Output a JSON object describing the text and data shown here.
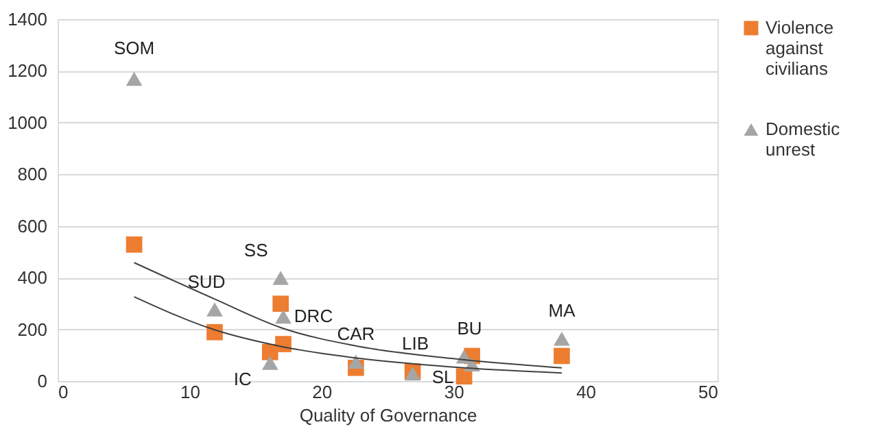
{
  "chart_data": {
    "type": "scatter",
    "xlabel": "Quality of Governance",
    "xlim": [
      0,
      50
    ],
    "xticks": [
      0,
      10,
      20,
      30,
      40,
      50
    ],
    "ylim": [
      0,
      1400
    ],
    "yticks": [
      0,
      200,
      400,
      600,
      800,
      1000,
      1200,
      1400
    ],
    "grid": "y",
    "legend": "right",
    "series": [
      {
        "name": "Violence against civilians",
        "color": "#ed7d31",
        "marker": "square",
        "x": [
          5.8,
          11.9,
          16.9,
          16.1,
          17.1,
          22.6,
          26.9,
          30.8,
          31.4,
          38.2
        ],
        "values": [
          528,
          189,
          299,
          112,
          143,
          51,
          37,
          18,
          97,
          97
        ]
      },
      {
        "name": "Domestic unrest",
        "color": "#a5a5a5",
        "marker": "triangle",
        "x": [
          5.8,
          11.9,
          16.9,
          17.1,
          16.1,
          22.6,
          26.9,
          30.8,
          31.4,
          38.2
        ],
        "values": [
          1169,
          277,
          399,
          249,
          70,
          75,
          29,
          95,
          64,
          164
        ]
      },
      {
        "type": "line",
        "color": "#404040",
        "x": [
          5.8,
          11.9,
          16.9,
          22.8,
          29.7,
          38.2
        ],
        "values": [
          458,
          317,
          207,
          134,
          88,
          51
        ]
      },
      {
        "type": "line",
        "color": "#404040",
        "x": [
          5.8,
          11.9,
          16.9,
          22.8,
          29.7,
          38.2
        ],
        "values": [
          326,
          198,
          134,
          88,
          55,
          31
        ]
      }
    ],
    "annotations": [
      {
        "text": "SOM",
        "x": 5.8,
        "y": 1169
      },
      {
        "text": "SUD",
        "x": 11.9,
        "y": 277
      },
      {
        "text": "SS",
        "x": 16.9,
        "y": 399
      },
      {
        "text": "DRC",
        "x": 17.1,
        "y": 249
      },
      {
        "text": "IC",
        "x": 16.1,
        "y": 70
      },
      {
        "text": "CAR",
        "x": 22.6,
        "y": 75
      },
      {
        "text": "LIB",
        "x": 26.9,
        "y": 37
      },
      {
        "text": "SL",
        "x": 26.9,
        "y": 29
      },
      {
        "text": "BU",
        "x": 30.8,
        "y": 95
      },
      {
        "text": "MA",
        "x": 38.2,
        "y": 164
      }
    ]
  }
}
